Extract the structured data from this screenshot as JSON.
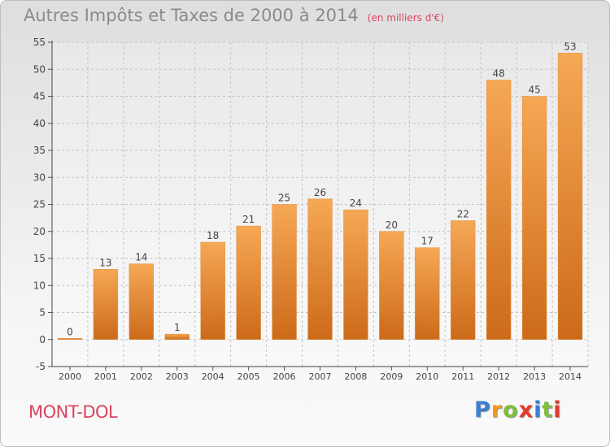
{
  "header": {
    "title": "Autres Impôts et Taxes de 2000 à 2014",
    "subtitle": "(en milliers d'€)"
  },
  "footer": {
    "commune": "MONT-DOL",
    "logo_text": [
      "P",
      "r",
      "o",
      "x",
      "i",
      "t",
      "i"
    ]
  },
  "colors": {
    "bar_top": "#f6a855",
    "bar_bottom": "#cc6a1a",
    "title": "#8a8a8a",
    "commune": "#d9455f",
    "logo": [
      "#3b7fd1",
      "#f29a1c",
      "#7fbf3f",
      "#e23b2f",
      "#3b7fd1",
      "#7fbf3f",
      "#e23b2f"
    ]
  },
  "chart_data": {
    "type": "bar",
    "categories": [
      "2000",
      "2001",
      "2002",
      "2003",
      "2004",
      "2005",
      "2006",
      "2007",
      "2008",
      "2009",
      "2010",
      "2011",
      "2012",
      "2013",
      "2014"
    ],
    "values": [
      0,
      13,
      14,
      1,
      18,
      21,
      25,
      26,
      24,
      20,
      17,
      22,
      48,
      45,
      53
    ],
    "ylim": [
      -5,
      55
    ],
    "yticks": [
      -5,
      0,
      5,
      10,
      15,
      20,
      25,
      30,
      35,
      40,
      45,
      50,
      55
    ],
    "grid": true,
    "data_labels": true
  }
}
